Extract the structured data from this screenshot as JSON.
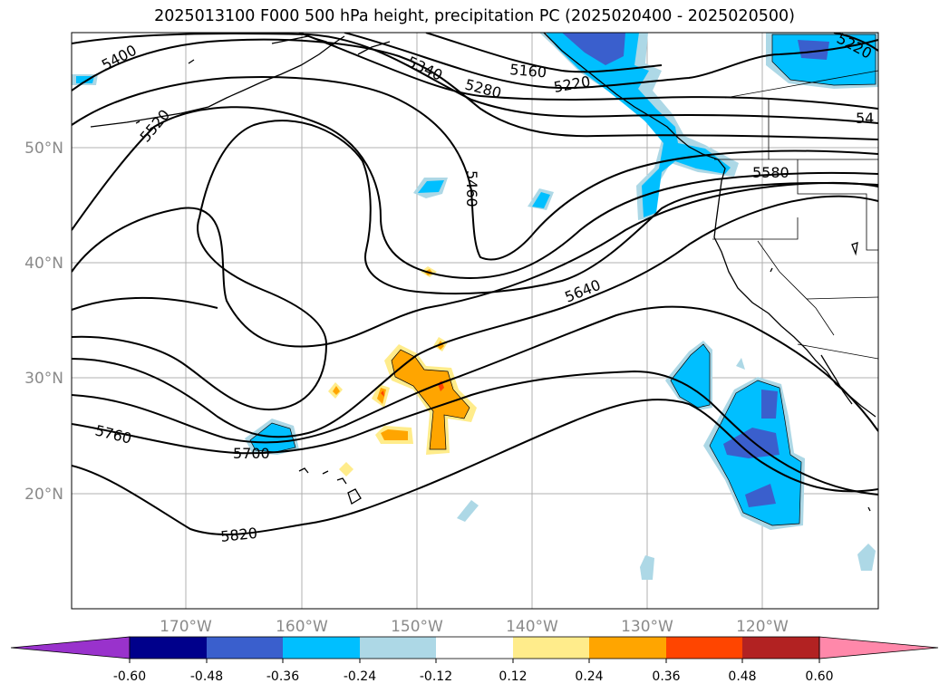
{
  "title": "2025013100 F000 500 hPa height, precipitation PC (2025020400 - 2025020500)",
  "lat_labels": [
    "50°N",
    "40°N",
    "30°N",
    "20°N"
  ],
  "lon_labels": [
    "170°W",
    "160°W",
    "150°W",
    "140°W",
    "130°W",
    "120°W"
  ],
  "contour_labels": [
    "5400",
    "5340",
    "5280",
    "5160",
    "5220",
    "5220",
    "54",
    "5520",
    "5460",
    "5580",
    "5640",
    "5700",
    "5760",
    "5820"
  ],
  "colorbar": {
    "colors": [
      "#9932cc",
      "#00008b",
      "#3a5fcd",
      "#00bfff",
      "#add8e6",
      "#ffffff",
      "#ffec8b",
      "#ffa500",
      "#ff4500",
      "#b22222",
      "#ff88aa"
    ],
    "tick_labels": [
      "-0.60",
      "-0.48",
      "-0.36",
      "-0.24",
      "-0.12",
      "0.12",
      "0.24",
      "0.36",
      "0.48",
      "0.60"
    ]
  }
}
